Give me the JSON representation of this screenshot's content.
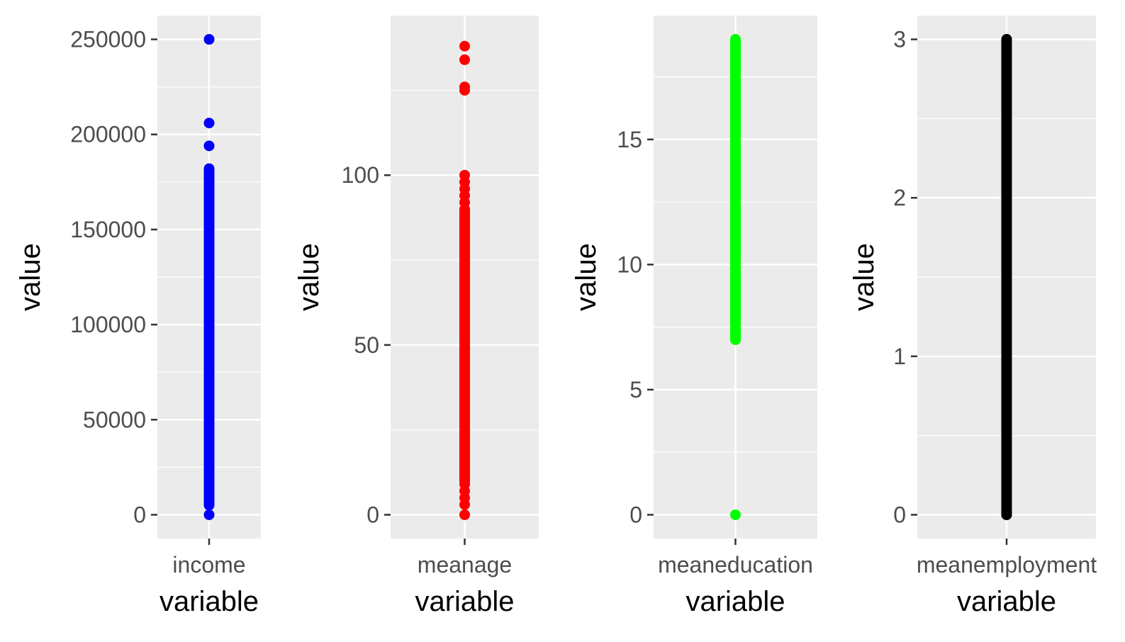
{
  "chart_data": [
    {
      "type": "scatter",
      "xlabel": "variable",
      "ylabel": "value",
      "categories": [
        "income"
      ],
      "color": "#0000ff",
      "ylim": [
        -12500,
        262500
      ],
      "yticks": [
        0,
        50000,
        100000,
        150000,
        200000,
        250000
      ],
      "ytick_labels": [
        "0",
        "50000",
        "100000",
        "150000",
        "200000",
        "250000"
      ],
      "points": [
        0,
        250000,
        206000,
        194000
      ],
      "dense_range": [
        5000,
        182000
      ],
      "grid": true
    },
    {
      "type": "scatter",
      "xlabel": "variable",
      "ylabel": "value",
      "categories": [
        "meanage"
      ],
      "color": "#ff0000",
      "ylim": [
        -7,
        147
      ],
      "yticks": [
        0,
        50,
        100
      ],
      "ytick_labels": [
        "0",
        "50",
        "100"
      ],
      "points": [
        0,
        3,
        5,
        7,
        9,
        92,
        94,
        96,
        98,
        100,
        125,
        126,
        134,
        138
      ],
      "dense_range": [
        10,
        90
      ],
      "grid": true
    },
    {
      "type": "scatter",
      "xlabel": "variable",
      "ylabel": "value",
      "categories": [
        "meaneducation"
      ],
      "color": "#00ff00",
      "ylim": [
        -0.95,
        19.95
      ],
      "yticks": [
        0,
        5,
        10,
        15
      ],
      "ytick_labels": [
        "0",
        "5",
        "10",
        "15"
      ],
      "points": [
        0,
        7,
        19
      ],
      "dense_range": [
        7,
        19
      ],
      "grid": true
    },
    {
      "type": "scatter",
      "xlabel": "variable",
      "ylabel": "value",
      "categories": [
        "meanemployment"
      ],
      "color": "#000000",
      "ylim": [
        -0.15,
        3.15
      ],
      "yticks": [
        0,
        1,
        2,
        3
      ],
      "ytick_labels": [
        "0",
        "1",
        "2",
        "3"
      ],
      "points": [
        0,
        3
      ],
      "dense_range": [
        0,
        3
      ],
      "grid": true
    }
  ]
}
